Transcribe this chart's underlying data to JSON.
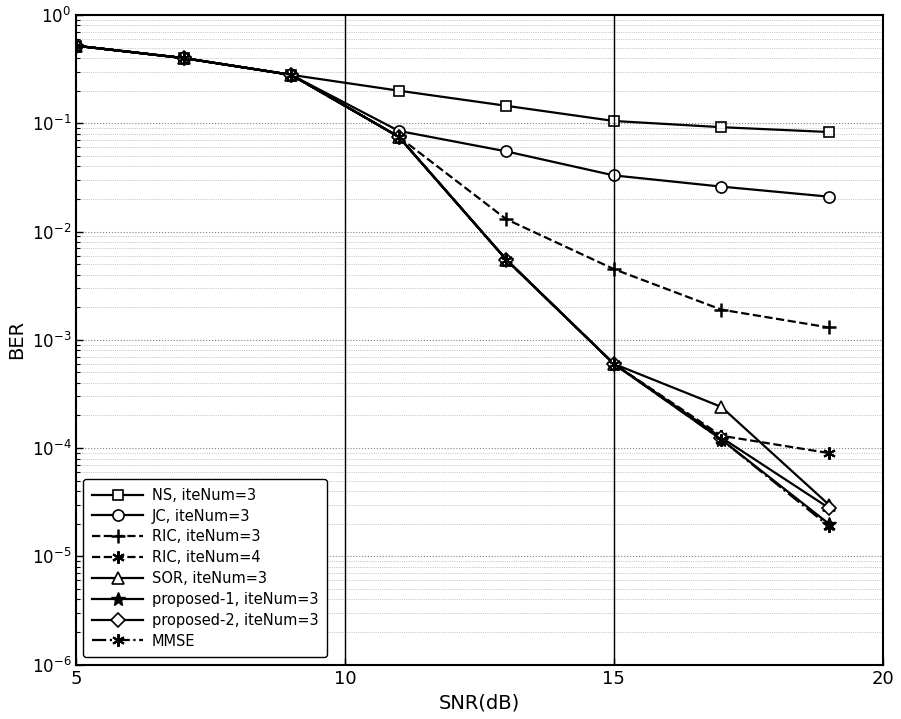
{
  "snr": [
    5,
    7,
    9,
    11,
    13,
    15,
    17,
    19
  ],
  "NS": [
    0.52,
    0.4,
    0.28,
    0.2,
    0.145,
    0.105,
    0.092,
    0.083
  ],
  "JC": [
    0.52,
    0.4,
    0.28,
    0.085,
    0.055,
    0.033,
    0.026,
    0.021
  ],
  "RIC3": [
    0.52,
    0.4,
    0.28,
    0.075,
    0.013,
    0.0045,
    0.0019,
    0.0013
  ],
  "RIC4": [
    0.52,
    0.4,
    0.28,
    0.075,
    0.0055,
    0.0006,
    0.00013,
    9e-05
  ],
  "SOR": [
    0.52,
    0.4,
    0.28,
    0.075,
    0.0055,
    0.0006,
    0.00024,
    3e-05
  ],
  "prop1": [
    0.52,
    0.4,
    0.28,
    0.075,
    0.0055,
    0.0006,
    0.00012,
    2e-05
  ],
  "prop2": [
    0.52,
    0.4,
    0.28,
    0.075,
    0.0055,
    0.0006,
    0.000125,
    2.8e-05
  ],
  "MMSE": [
    0.52,
    0.4,
    0.28,
    0.075,
    0.0055,
    0.0006,
    0.00012,
    1.9e-05
  ],
  "xlabel": "SNR(dB)",
  "ylabel": "BER",
  "xlim": [
    5,
    20
  ],
  "ylim_log": [
    -6,
    0
  ],
  "vlines": [
    10,
    15
  ],
  "legend_labels": [
    "NS, iteNum=3",
    "JC, iteNum=3",
    "RIC, iteNum=3",
    "RIC, iteNum=4",
    "SOR, iteNum=3",
    "proposed-1, iteNum=3",
    "proposed-2, iteNum=3",
    "MMSE"
  ]
}
